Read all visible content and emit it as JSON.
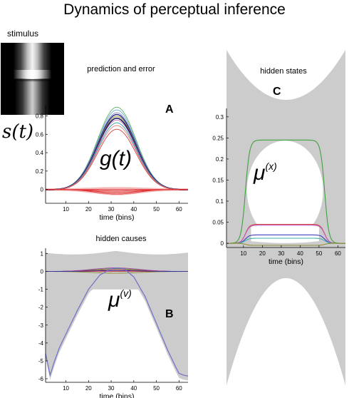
{
  "title": "Dynamics of perceptual inference",
  "stimulus_label": "stimulus",
  "signal_symbol": "s(t)",
  "colors": {
    "band": "#cccccc",
    "error": "#e03030",
    "prediction": "#1a1a80"
  },
  "chart_data": [
    {
      "id": "A",
      "type": "line",
      "title": "prediction and error",
      "panel_letter": "A",
      "xlabel": "time (bins)",
      "annotation": "g(t)",
      "xlim": [
        1,
        64
      ],
      "ylim": [
        -0.15,
        0.92
      ],
      "xticks": [
        10,
        20,
        30,
        40,
        50,
        60
      ],
      "yticks": [
        0,
        0.2,
        0.4,
        0.6,
        0.8
      ],
      "ytick_labels": [
        "0",
        "0.2",
        "0.4",
        "0.6",
        "0.8"
      ],
      "gaussian_center": 32.5,
      "gaussian_width": 8.5,
      "series": [
        {
          "color": "#5cb85c",
          "peak": 0.9
        },
        {
          "color": "#6aa8d8",
          "peak": 0.87
        },
        {
          "color": "#8c8cd0",
          "peak": 0.84
        },
        {
          "color": "#3a3a8a",
          "peak": 0.82
        },
        {
          "color": "#9a9a30",
          "peak": 0.8
        },
        {
          "color": "#1a1a60",
          "peak": 0.78
        },
        {
          "color": "#c070c0",
          "peak": 0.76
        },
        {
          "color": "#30a0a0",
          "peak": 0.73
        },
        {
          "color": "#e08080",
          "peak": 0.7
        },
        {
          "color": "#d04040",
          "peak": 0.66
        }
      ],
      "error_peak": -0.05
    },
    {
      "id": "B",
      "type": "line",
      "title": "hidden causes",
      "panel_letter": "B",
      "xlabel": "time (bins)",
      "annotation": "μ(v)",
      "xlim": [
        1,
        64
      ],
      "ylim": [
        -6.2,
        1.3
      ],
      "xticks": [
        10,
        20,
        30,
        40,
        50,
        60
      ],
      "yticks": [
        1,
        0,
        -1,
        -2,
        -3,
        -4,
        -5,
        -6
      ],
      "ytick_labels": [
        "1",
        "0",
        "-1",
        "-2",
        "-3",
        "-4",
        "-5",
        "-6"
      ],
      "main_curve": {
        "color": "#7070c8",
        "x": [
          1,
          3,
          5,
          7,
          10,
          15,
          20,
          25,
          30,
          33,
          36,
          40,
          45,
          50,
          55,
          58,
          60,
          62,
          64
        ],
        "y": [
          -4.6,
          -5.8,
          -5.0,
          -4.3,
          -3.5,
          -2.2,
          -1.0,
          -0.2,
          0.15,
          0.2,
          0.12,
          -0.3,
          -1.4,
          -2.9,
          -4.4,
          -5.2,
          -5.7,
          -5.8,
          -5.85
        ]
      },
      "small_series": [
        {
          "color": "#40a040",
          "y_mid": 0.15
        },
        {
          "color": "#d04040",
          "y_mid": 0.1
        },
        {
          "color": "#a040a0",
          "y_mid": 0.2
        },
        {
          "color": "#909030",
          "y_mid": -0.1
        },
        {
          "color": "#3030a0",
          "y_mid": 0.05
        }
      ]
    },
    {
      "id": "C",
      "type": "line",
      "title": "hidden states",
      "panel_letter": "C",
      "xlabel": "time (bins)",
      "annotation": "μ(x)",
      "xlim": [
        1,
        64
      ],
      "ylim": [
        -0.01,
        0.32
      ],
      "xticks": [
        10,
        20,
        30,
        40,
        50,
        60
      ],
      "yticks": [
        0,
        0.05,
        0.1,
        0.15,
        0.2,
        0.25,
        0.3
      ],
      "ytick_labels": [
        "0",
        "0.05",
        "0.1",
        "0.15",
        "0.2",
        "0.25",
        "0.3"
      ],
      "series": [
        {
          "color": "#40a040",
          "level": 0.245
        },
        {
          "color": "#d04040",
          "level": 0.045
        },
        {
          "color": "#c060c0",
          "level": 0.043
        },
        {
          "color": "#4040c0",
          "level": 0.02
        },
        {
          "color": "#40b0b0",
          "level": 0.012
        },
        {
          "color": "#909030",
          "level": -0.005
        }
      ]
    }
  ]
}
